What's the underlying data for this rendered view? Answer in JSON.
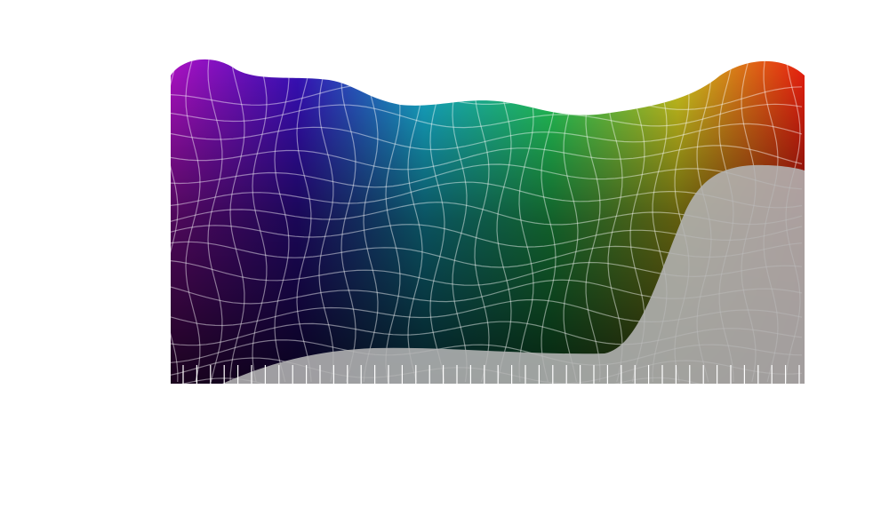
{
  "artwork": {
    "palette": [
      "#b012c8",
      "#3a10c0",
      "#18b8d8",
      "#28d860",
      "#d8d020",
      "#f02010"
    ],
    "overlay_color": "#b4b4b4",
    "background": "#ffffff"
  }
}
